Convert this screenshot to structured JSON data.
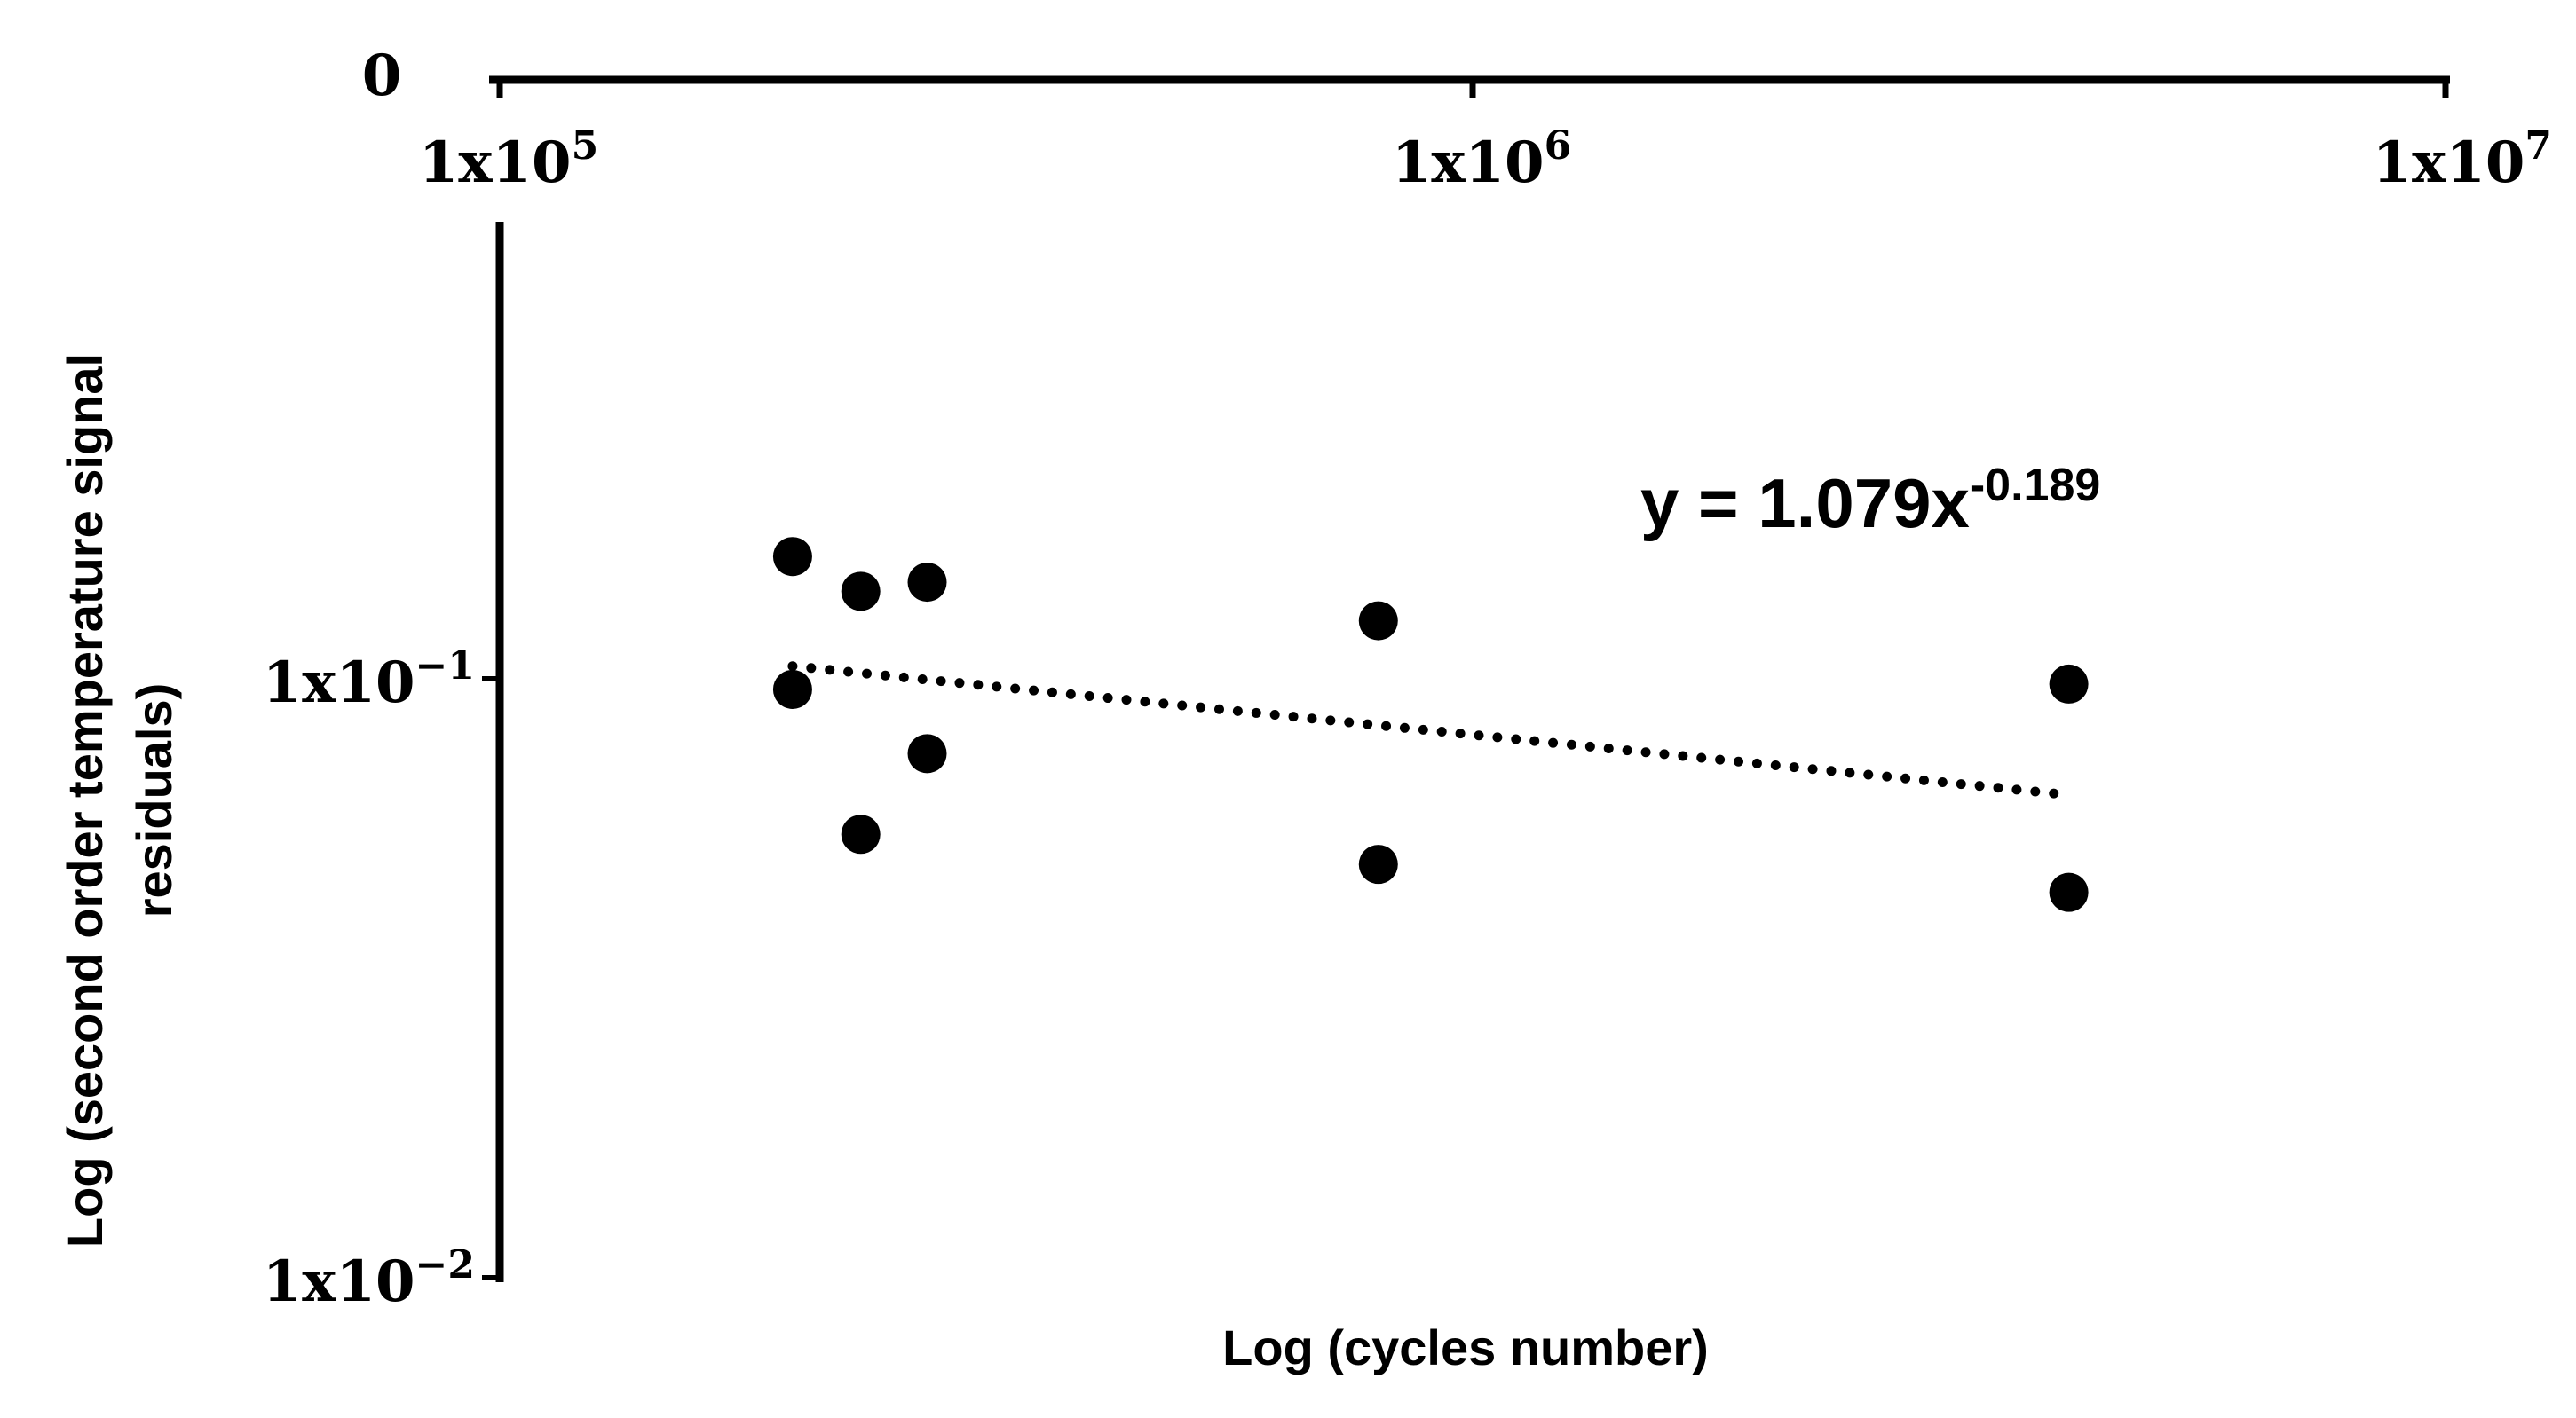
{
  "chart_data": {
    "type": "scatter",
    "x_scale": "log",
    "y_scale": "log",
    "xlim": [
      100000,
      10000000
    ],
    "ylim": [
      0.01,
      1
    ],
    "x_ticks": [
      {
        "base": "1x10",
        "exp": "5",
        "value": 100000
      },
      {
        "base": "1x10",
        "exp": "6",
        "value": 1000000
      },
      {
        "base": "1x10",
        "exp": "7",
        "value": 10000000
      }
    ],
    "y_ticks": [
      {
        "base": "1x10",
        "exp": "−1",
        "value": 0.1
      },
      {
        "base": "1x10",
        "exp": "−2",
        "value": 0.01
      }
    ],
    "corner_label": "0",
    "xlabel": "Log (cycles number)",
    "ylabel_line1": "Log (second order temperature signal",
    "ylabel_line2": "residuals)",
    "points": [
      {
        "x": 200000,
        "y": 0.16
      },
      {
        "x": 200000,
        "y": 0.096
      },
      {
        "x": 235000,
        "y": 0.14
      },
      {
        "x": 235000,
        "y": 0.055
      },
      {
        "x": 275000,
        "y": 0.145
      },
      {
        "x": 275000,
        "y": 0.075
      },
      {
        "x": 800000,
        "y": 0.125
      },
      {
        "x": 800000,
        "y": 0.049
      },
      {
        "x": 4100000,
        "y": 0.098
      },
      {
        "x": 4100000,
        "y": 0.044
      }
    ],
    "trendline": {
      "style": "dotted",
      "coef": 1.079,
      "exponent": -0.189,
      "x_range": [
        200000,
        4100000
      ]
    },
    "equation": {
      "prefix": "y = 1.079x",
      "sup": "-0.189"
    },
    "grid": false,
    "legend": "none",
    "marker_color": "#000000"
  }
}
